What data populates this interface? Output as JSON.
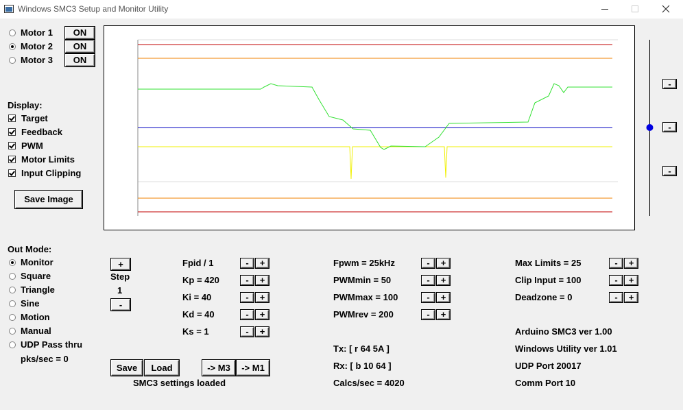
{
  "window_title": "Windows SMC3 Setup and Monitor Utility",
  "motors": {
    "button_label": "ON",
    "items": [
      {
        "label": "Motor 1",
        "selected": false
      },
      {
        "label": "Motor 2",
        "selected": true
      },
      {
        "label": "Motor 3",
        "selected": false
      }
    ]
  },
  "display": {
    "heading": "Display:",
    "items": [
      {
        "label": "Target",
        "checked": true
      },
      {
        "label": "Feedback",
        "checked": true
      },
      {
        "label": "PWM",
        "checked": true
      },
      {
        "label": "Motor Limits",
        "checked": true
      },
      {
        "label": "Input Clipping",
        "checked": true
      }
    ]
  },
  "save_image": "Save Image",
  "out_mode": {
    "heading": "Out Mode:",
    "items": [
      {
        "label": "Monitor",
        "selected": true
      },
      {
        "label": "Square",
        "selected": false
      },
      {
        "label": "Triangle",
        "selected": false
      },
      {
        "label": "Sine",
        "selected": false
      },
      {
        "label": "Motion",
        "selected": false
      },
      {
        "label": "Manual",
        "selected": false
      },
      {
        "label": "UDP Pass thru",
        "selected": false
      }
    ]
  },
  "packets": "pks/sec = 0",
  "step": {
    "increase": "+",
    "label": "Step",
    "value": "1",
    "decrease": "-"
  },
  "adjust": {
    "decrease": "-",
    "increase": "+"
  },
  "columns": [
    {
      "settings": [
        "Fpid / 1",
        "Kp = 420",
        "Ki = 40",
        "Kd = 40",
        "Ks = 1"
      ],
      "status": []
    },
    {
      "settings": [
        "Fpwm = 25kHz",
        "PWMmin = 50",
        "PWMmax = 100",
        "PWMrev = 200"
      ],
      "status": [
        "Tx: [ r 64 5A ]",
        "Rx: [ b 10 64 ]",
        "Calcs/sec = 4020"
      ]
    },
    {
      "settings": [
        "Max Limits = 25",
        "Clip Input = 100",
        "Deadzone = 0"
      ],
      "status": [
        "Arduino SMC3 ver 1.00",
        "Windows Utility ver 1.01",
        "UDP Port 20017",
        "Comm Port 10"
      ]
    }
  ],
  "actions": [
    "Save",
    "Load",
    "-> M3",
    "-> M1"
  ],
  "status_message": "SMC3 settings loaded"
}
